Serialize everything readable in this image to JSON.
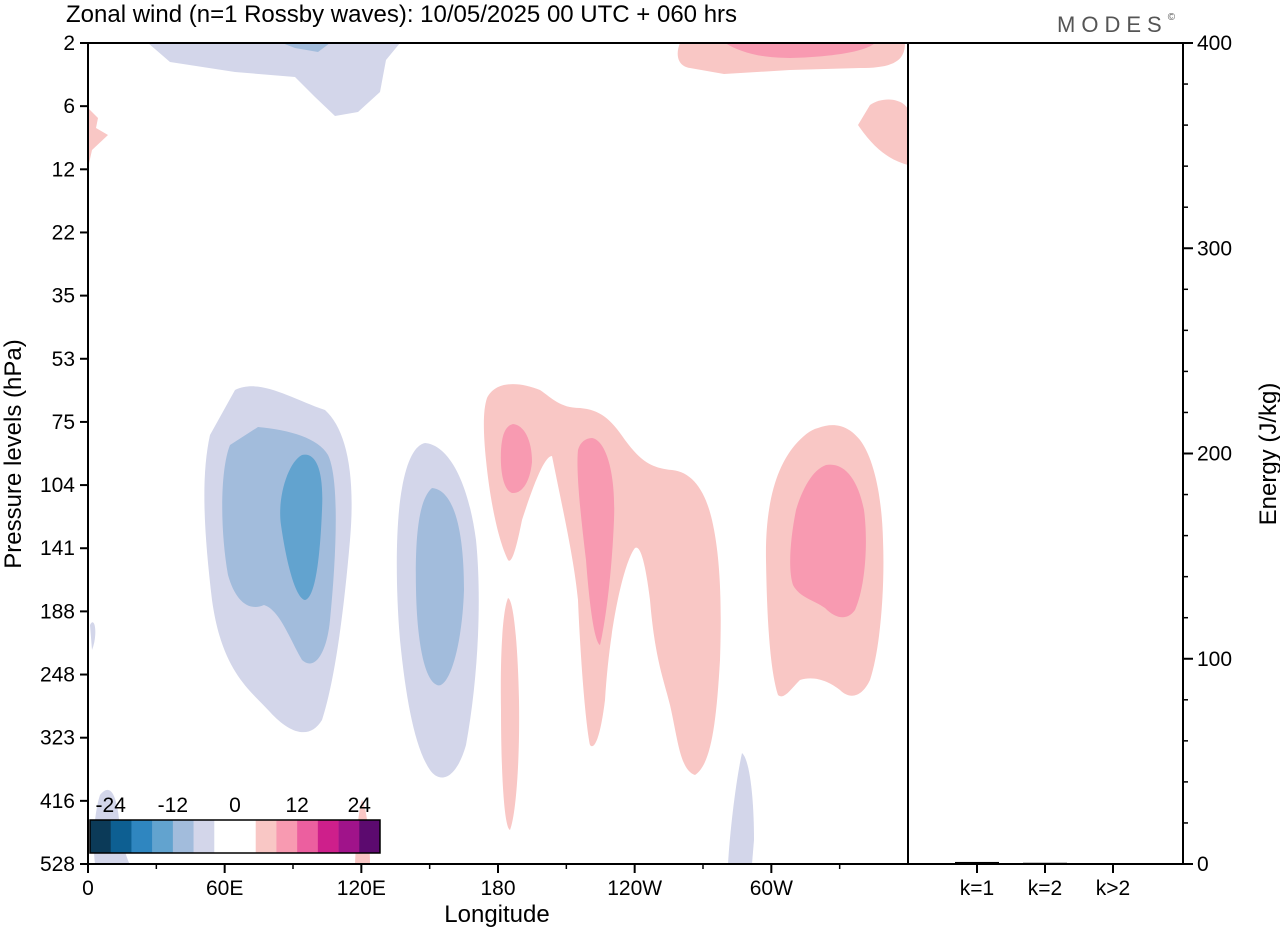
{
  "chart_data": {
    "type": "heatmap",
    "title": "Zonal wind (n=1 Rossby waves):  10/05/2025  00 UTC  + 060 hrs",
    "brand": "MODES",
    "brand_mark": "©",
    "xlabel": "Longitude",
    "ylabel": "Pressure levels (hPa)",
    "y2label": "Energy (J/kg)",
    "x_ticks": [
      "0",
      "60E",
      "120E",
      "180",
      "120W",
      "60W"
    ],
    "x_tick_degrees": [
      0,
      60,
      120,
      180,
      240,
      300
    ],
    "xlim": [
      0,
      360
    ],
    "y_levels": [
      "2",
      "6",
      "12",
      "22",
      "35",
      "53",
      "75",
      "104",
      "141",
      "188",
      "248",
      "323",
      "416",
      "528"
    ],
    "y2_ticks": [
      "0",
      "100",
      "200",
      "300",
      "400"
    ],
    "y2lim": [
      0,
      400
    ],
    "colorbar": {
      "labels": [
        "-24",
        "-12",
        "0",
        "12",
        "24"
      ],
      "colors": [
        "#0b3a58",
        "#0d5f92",
        "#2f86c0",
        "#62a3cf",
        "#a2bcdc",
        "#d3d6ea",
        "#ffffff",
        "#ffffff",
        "#f9c7c5",
        "#f89ab1",
        "#ec5f9f",
        "#ce1f8b",
        "#a0138a",
        "#5c0a6f"
      ]
    },
    "energy_bars": {
      "categories": [
        "k=1",
        "k=2",
        "k>2"
      ],
      "values": [
        1,
        0.6,
        0.3
      ]
    },
    "contour_regions": [
      {
        "level": "negative, weak",
        "color": "#d3d6ea"
      },
      {
        "level": "negative, moderate",
        "color": "#a2bcdc"
      },
      {
        "level": "negative, strong",
        "color": "#62a3cf"
      },
      {
        "level": "positive, weak",
        "color": "#f9c7c5"
      },
      {
        "level": "positive, moderate",
        "color": "#f89ab1"
      }
    ]
  }
}
